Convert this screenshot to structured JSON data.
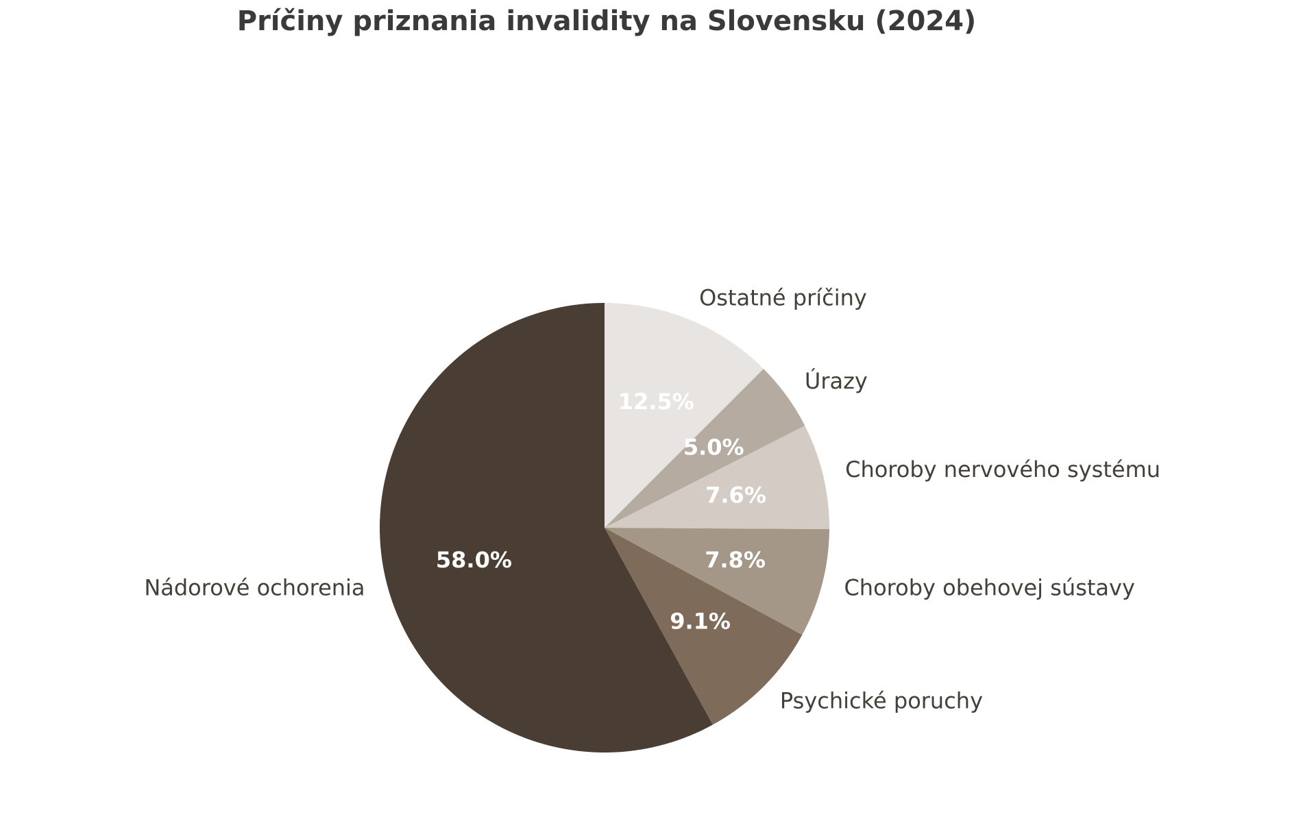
{
  "chart_data": {
    "type": "pie",
    "title": "Príčiny priznania invalidity na Slovensku (2024)",
    "start_angle_deg": 90,
    "direction": "counterclockwise",
    "slices": [
      {
        "label": "Nádorové ochorenia",
        "value": 58.0,
        "pct_label": "58.0%",
        "color": "#4a3d33"
      },
      {
        "label": "Psychické poruchy",
        "value": 9.1,
        "pct_label": "9.1%",
        "color": "#7e6b5a"
      },
      {
        "label": "Choroby obehovej sústavy",
        "value": 7.8,
        "pct_label": "7.8%",
        "color": "#a49788"
      },
      {
        "label": "Choroby nervového systému",
        "value": 7.6,
        "pct_label": "7.6%",
        "color": "#d4cbc4"
      },
      {
        "label": "Úrazy",
        "value": 5.0,
        "pct_label": "5.0%",
        "color": "#b5aba1"
      },
      {
        "label": "Ostatné príčiny",
        "value": 12.5,
        "pct_label": "12.5%",
        "color": "#e8e4e1"
      }
    ]
  }
}
